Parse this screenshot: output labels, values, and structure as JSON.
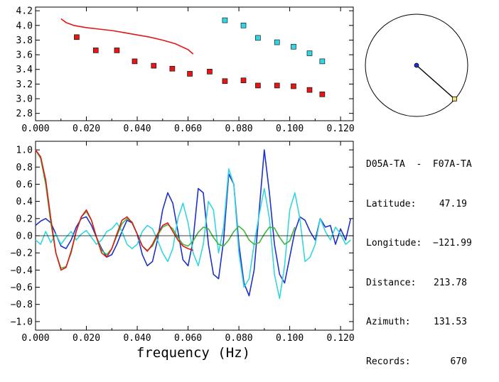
{
  "chart_data": [
    {
      "type": "scatter",
      "xlim": [
        0,
        0.125
      ],
      "ylim": [
        2.7,
        4.25
      ],
      "xticks": [
        "0.000",
        "0.020",
        "0.040",
        "0.060",
        "0.080",
        "0.100",
        "0.120"
      ],
      "yticks": [
        "2.8",
        "3.0",
        "3.2",
        "3.4",
        "3.6",
        "3.8",
        "4.0",
        "4.2"
      ],
      "series": [
        {
          "kind": "line",
          "color": "#e01818",
          "x": [
            0.01,
            0.012,
            0.015,
            0.02,
            0.025,
            0.03,
            0.035,
            0.04,
            0.045,
            0.05,
            0.055,
            0.06,
            0.062
          ],
          "y": [
            4.09,
            4.04,
            4.0,
            3.97,
            3.95,
            3.93,
            3.9,
            3.87,
            3.84,
            3.8,
            3.75,
            3.67,
            3.61
          ]
        },
        {
          "kind": "points",
          "color": "#e01818",
          "x": [
            0.0162,
            0.0237,
            0.032,
            0.039,
            0.0465,
            0.0538,
            0.0607,
            0.0685,
            0.0745,
            0.0818,
            0.0875,
            0.095,
            0.1015,
            0.1078,
            0.1128
          ],
          "y": [
            3.84,
            3.66,
            3.66,
            3.51,
            3.45,
            3.41,
            3.34,
            3.37,
            3.24,
            3.25,
            3.18,
            3.18,
            3.17,
            3.12,
            3.06
          ]
        },
        {
          "kind": "points",
          "color": "#33d6e0",
          "x": [
            0.0745,
            0.0818,
            0.0875,
            0.095,
            0.1015,
            0.1078,
            0.1128
          ],
          "y": [
            4.07,
            4.0,
            3.83,
            3.77,
            3.71,
            3.62,
            3.51
          ]
        }
      ]
    },
    {
      "type": "line",
      "xlabel": "frequency (Hz)",
      "xlim": [
        0,
        0.125
      ],
      "ylim": [
        -1.1,
        1.1
      ],
      "xticks": [
        "0.000",
        "0.020",
        "0.040",
        "0.060",
        "0.080",
        "0.100",
        "0.120"
      ],
      "yticks": [
        "1.0",
        "0.8",
        "0.6",
        "0.4",
        "0.2",
        "0.0",
        "−0.2",
        "−0.4",
        "−0.6",
        "−0.8",
        "−1.0"
      ],
      "series": [
        {
          "color": "#1e32c8",
          "x": [
            0.0,
            0.002,
            0.004,
            0.006,
            0.008,
            0.01,
            0.012,
            0.014,
            0.016,
            0.018,
            0.02,
            0.022,
            0.024,
            0.026,
            0.028,
            0.03,
            0.032,
            0.034,
            0.036,
            0.038,
            0.04,
            0.042,
            0.044,
            0.046,
            0.048,
            0.05,
            0.052,
            0.054,
            0.056,
            0.058,
            0.06,
            0.062,
            0.064,
            0.066,
            0.068,
            0.07,
            0.072,
            0.074,
            0.076,
            0.078,
            0.08,
            0.082,
            0.084,
            0.086,
            0.088,
            0.09,
            0.092,
            0.094,
            0.096,
            0.098,
            0.1,
            0.102,
            0.104,
            0.106,
            0.108,
            0.11,
            0.112,
            0.114,
            0.116,
            0.118,
            0.12,
            0.122,
            0.124
          ],
          "y": [
            0.12,
            0.17,
            0.2,
            0.15,
            0.02,
            -0.12,
            -0.15,
            -0.05,
            0.1,
            0.2,
            0.22,
            0.12,
            -0.02,
            -0.15,
            -0.25,
            -0.22,
            -0.1,
            0.05,
            0.18,
            0.15,
            0.02,
            -0.22,
            -0.35,
            -0.3,
            -0.05,
            0.3,
            0.5,
            0.38,
            0.05,
            -0.28,
            -0.35,
            -0.05,
            0.55,
            0.5,
            -0.1,
            -0.45,
            -0.5,
            -0.05,
            0.72,
            0.6,
            -0.1,
            -0.55,
            -0.7,
            -0.4,
            0.3,
            1.0,
            0.5,
            -0.1,
            -0.45,
            -0.55,
            -0.25,
            0.05,
            0.22,
            0.18,
            0.05,
            -0.05,
            0.2,
            0.1,
            0.12,
            -0.1,
            0.08,
            -0.05,
            0.2
          ]
        },
        {
          "color": "#33d6e0",
          "x": [
            0.0,
            0.002,
            0.004,
            0.006,
            0.008,
            0.01,
            0.012,
            0.014,
            0.016,
            0.018,
            0.02,
            0.022,
            0.024,
            0.026,
            0.028,
            0.03,
            0.032,
            0.034,
            0.036,
            0.038,
            0.04,
            0.042,
            0.044,
            0.046,
            0.048,
            0.05,
            0.052,
            0.054,
            0.056,
            0.058,
            0.06,
            0.062,
            0.064,
            0.066,
            0.068,
            0.07,
            0.072,
            0.074,
            0.076,
            0.078,
            0.08,
            0.082,
            0.084,
            0.086,
            0.088,
            0.09,
            0.092,
            0.094,
            0.096,
            0.098,
            0.1,
            0.102,
            0.104,
            0.106,
            0.108,
            0.11,
            0.112,
            0.114,
            0.116,
            0.118,
            0.12,
            0.122,
            0.124
          ],
          "y": [
            -0.05,
            -0.1,
            0.05,
            -0.08,
            0.02,
            -0.1,
            -0.02,
            0.05,
            -0.05,
            0.02,
            0.06,
            -0.02,
            -0.1,
            -0.05,
            0.05,
            0.08,
            0.15,
            0.05,
            -0.1,
            -0.15,
            -0.1,
            0.05,
            0.12,
            0.08,
            -0.05,
            -0.2,
            -0.3,
            -0.15,
            0.2,
            0.38,
            0.15,
            -0.2,
            -0.35,
            -0.1,
            0.4,
            0.3,
            -0.2,
            0.1,
            0.78,
            0.6,
            -0.2,
            -0.6,
            -0.5,
            -0.1,
            0.25,
            0.55,
            0.2,
            -0.45,
            -0.73,
            -0.35,
            0.3,
            0.5,
            0.2,
            -0.3,
            -0.25,
            -0.1,
            0.2,
            0.05,
            -0.05,
            0.1,
            0.02,
            -0.1,
            -0.05
          ]
        },
        {
          "color": "#3cb83c",
          "x": [
            0.0,
            0.002,
            0.004,
            0.006,
            0.008,
            0.01,
            0.012,
            0.014,
            0.016,
            0.018,
            0.02,
            0.022,
            0.024,
            0.026,
            0.028,
            0.03,
            0.032,
            0.034,
            0.036,
            0.038,
            0.04,
            0.042,
            0.044,
            0.046,
            0.048,
            0.05,
            0.052,
            0.054,
            0.056,
            0.058,
            0.06,
            0.062,
            0.064,
            0.066,
            0.068,
            0.07,
            0.072,
            0.074,
            0.076,
            0.078,
            0.08,
            0.082,
            0.084,
            0.086,
            0.088,
            0.09,
            0.092,
            0.094,
            0.096,
            0.098,
            0.1,
            0.102
          ],
          "y": [
            1.0,
            0.9,
            0.6,
            0.15,
            -0.2,
            -0.38,
            -0.36,
            -0.2,
            0.05,
            0.22,
            0.28,
            0.18,
            -0.02,
            -0.17,
            -0.22,
            -0.15,
            0.0,
            0.14,
            0.2,
            0.16,
            0.02,
            -0.12,
            -0.17,
            -0.12,
            0.0,
            0.1,
            0.13,
            0.08,
            -0.02,
            -0.1,
            -0.12,
            -0.06,
            0.04,
            0.1,
            0.08,
            -0.02,
            -0.1,
            -0.12,
            -0.05,
            0.05,
            0.11,
            0.06,
            -0.05,
            -0.1,
            -0.08,
            0.02,
            0.1,
            0.09,
            -0.02,
            -0.1,
            -0.06,
            0.1
          ]
        },
        {
          "color": "#e01818",
          "x": [
            0.0,
            0.002,
            0.004,
            0.006,
            0.008,
            0.01,
            0.012,
            0.014,
            0.016,
            0.018,
            0.02,
            0.022,
            0.024,
            0.026,
            0.028,
            0.03,
            0.032,
            0.034,
            0.036,
            0.038,
            0.04,
            0.042,
            0.044,
            0.046,
            0.048,
            0.05,
            0.052,
            0.054,
            0.056,
            0.058,
            0.06,
            0.062
          ],
          "y": [
            1.0,
            0.92,
            0.65,
            0.2,
            -0.2,
            -0.4,
            -0.37,
            -0.18,
            0.05,
            0.22,
            0.3,
            0.18,
            -0.02,
            -0.2,
            -0.25,
            -0.15,
            0.02,
            0.18,
            0.22,
            0.15,
            0.02,
            -0.12,
            -0.18,
            -0.1,
            0.02,
            0.12,
            0.15,
            0.05,
            -0.05,
            -0.12,
            -0.15,
            -0.17
          ]
        }
      ]
    }
  ],
  "map_inset": {
    "azimuth_deg": 131.53,
    "scale_fraction": 0.7
  },
  "station_info": {
    "pair": "D05A-TA  -  F07A-TA",
    "rows": [
      {
        "key": "Latitude:",
        "value": "47.19"
      },
      {
        "key": "Longitude:",
        "value": "−121.99"
      },
      {
        "key": "Distance:",
        "value": "213.78"
      },
      {
        "key": "Azimuth:",
        "value": "131.53"
      },
      {
        "key": "Records:",
        "value": "670"
      }
    ]
  }
}
